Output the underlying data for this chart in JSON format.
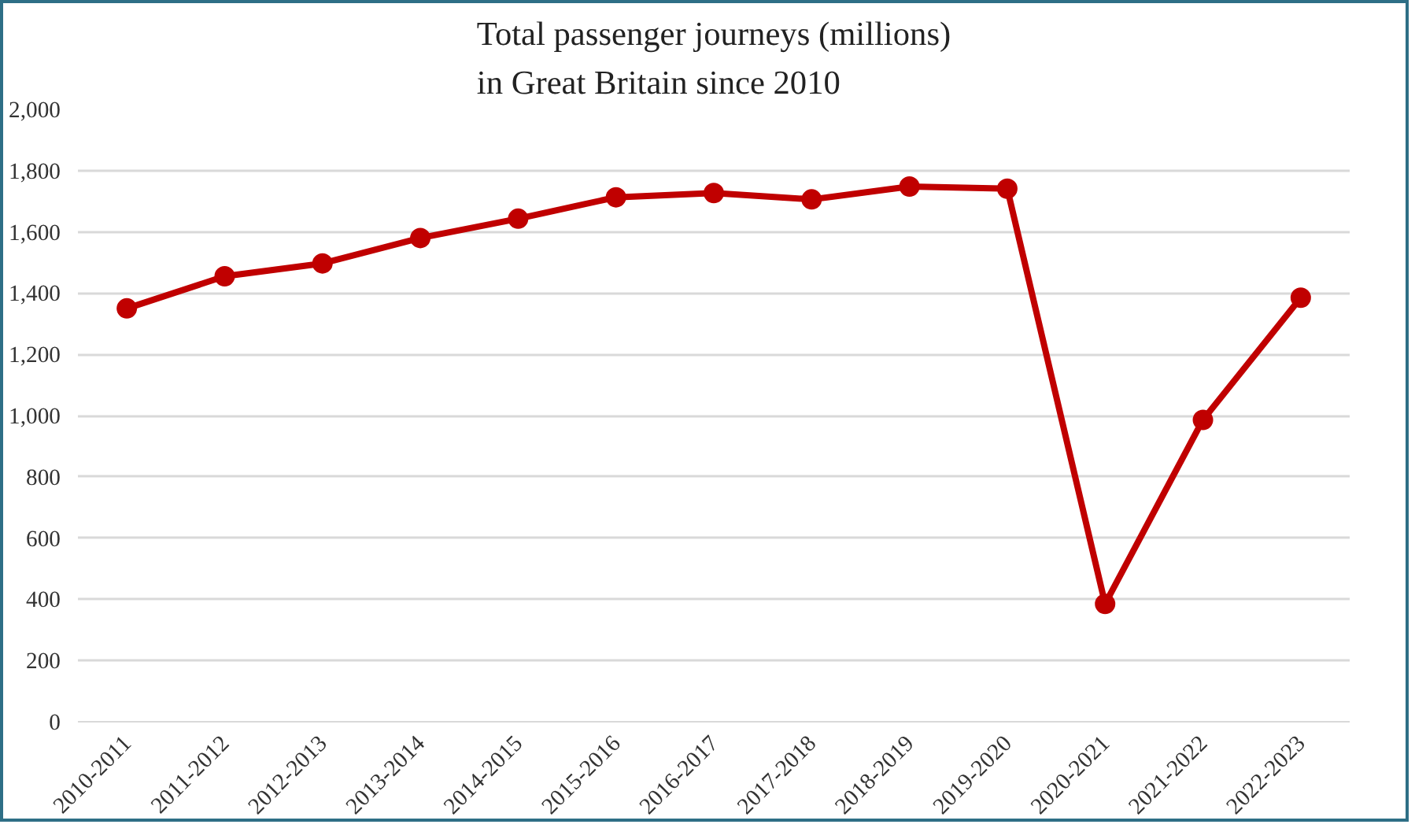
{
  "chart_data": {
    "type": "line",
    "title": "Total passenger journeys (millions)\nin Great Britain since 2010",
    "categories": [
      "2010-2011",
      "2011-2012",
      "2012-2013",
      "2013-2014",
      "2014-2015",
      "2015-2016",
      "2016-2017",
      "2017-2018",
      "2018-2019",
      "2019-2020",
      "2020-2021",
      "2021-2022",
      "2022-2023"
    ],
    "series": [
      {
        "color": "#c00000",
        "values": [
          1350,
          1455,
          1497,
          1580,
          1643,
          1713,
          1727,
          1706,
          1748,
          1741,
          385,
          986,
          1385
        ]
      }
    ],
    "ylim": [
      0,
      2000
    ],
    "yticks": [
      0,
      200,
      400,
      600,
      800,
      {
        "value": 1000,
        "label": "1,000"
      },
      {
        "value": 1200,
        "label": "1,200"
      },
      {
        "value": 1400,
        "label": "1,400"
      },
      {
        "value": 1600,
        "label": "1,600"
      },
      {
        "value": 1800,
        "label": "1,800"
      },
      {
        "value": 2000,
        "label": "2,000"
      }
    ],
    "grid": "y",
    "marker": "circle",
    "line_style": "solid"
  }
}
